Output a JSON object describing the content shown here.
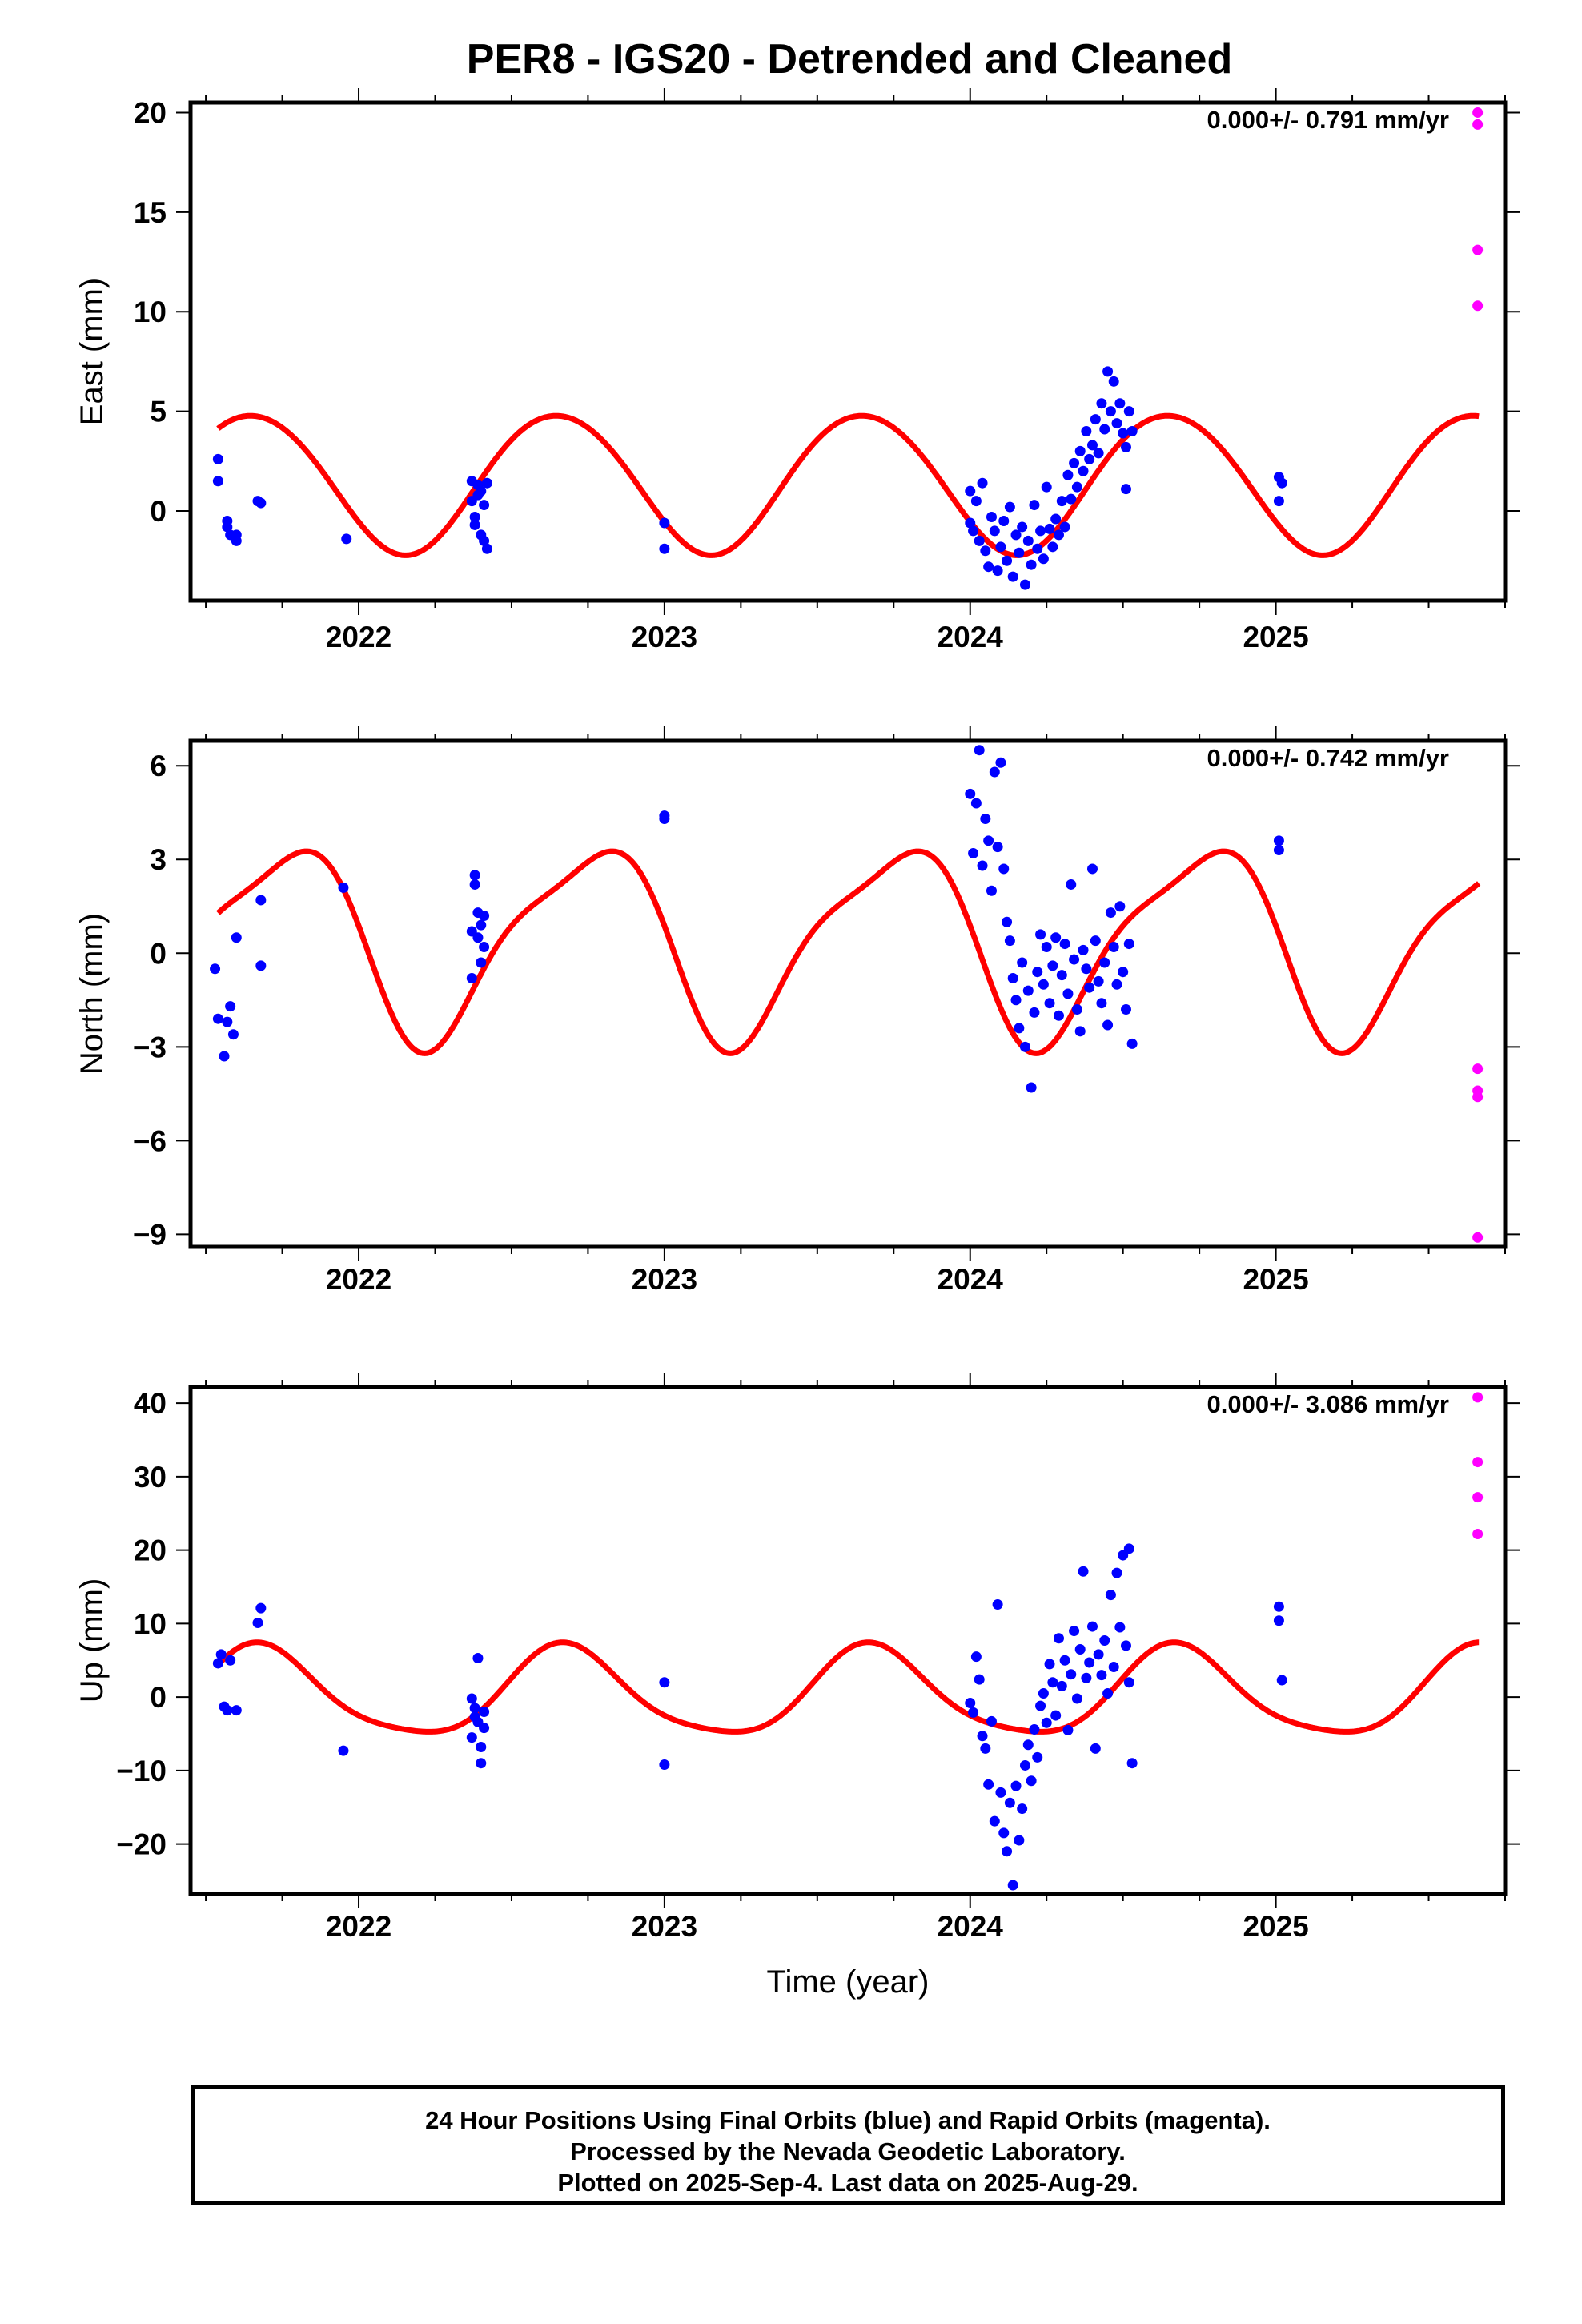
{
  "title": "PER8 - IGS20 - Detrended and Cleaned",
  "xlabel": "Time (year)",
  "colors": {
    "final": "#0000ff",
    "rapid": "#ff00ff",
    "model": "#ff0000",
    "axis": "#000000"
  },
  "footer": {
    "line1": "24 Hour Positions Using Final Orbits (blue) and Rapid Orbits (magenta).",
    "line2": "Processed by the Nevada Geodetic Laboratory.",
    "line3": "Plotted on 2025-Sep-4. Last data on 2025-Aug-29."
  },
  "chart_data": [
    {
      "type": "scatter",
      "ylabel": "East (mm)",
      "rate": "0.000+/- 0.791 mm/yr",
      "xlim": [
        2021.45,
        2025.75
      ],
      "ylim": [
        -4.5,
        20.5
      ],
      "x_ticks": [
        2022,
        2023,
        2024,
        2025
      ],
      "y_ticks": [
        0,
        5,
        10,
        15,
        20
      ],
      "y_tick_labels": [
        "0",
        "5",
        "10",
        "15",
        "20"
      ],
      "model": {
        "type": "line",
        "amp1": -0.16,
        "phase1": 0.17,
        "amp2": -3.5,
        "phase2": 0.0,
        "offset": 1.43
      },
      "final_orbits": [
        [
          2021.54,
          2.6
        ],
        [
          2021.54,
          1.5
        ],
        [
          2021.57,
          -0.5
        ],
        [
          2021.57,
          -0.8
        ],
        [
          2021.58,
          -1.2
        ],
        [
          2021.6,
          -1.5
        ],
        [
          2021.6,
          -1.2
        ],
        [
          2021.67,
          0.5
        ],
        [
          2021.68,
          0.4
        ],
        [
          2021.96,
          -1.4
        ],
        [
          2022.37,
          1.5
        ],
        [
          2022.37,
          0.5
        ],
        [
          2022.38,
          -0.3
        ],
        [
          2022.38,
          -0.7
        ],
        [
          2022.39,
          1.3
        ],
        [
          2022.39,
          0.8
        ],
        [
          2022.4,
          1.0
        ],
        [
          2022.4,
          -1.2
        ],
        [
          2022.41,
          -1.5
        ],
        [
          2022.41,
          0.3
        ],
        [
          2022.42,
          -1.9
        ],
        [
          2022.42,
          1.4
        ],
        [
          2023.0,
          -0.6
        ],
        [
          2023.0,
          -1.9
        ],
        [
          2024.0,
          -0.6
        ],
        [
          2024.0,
          1.0
        ],
        [
          2024.01,
          -1.0
        ],
        [
          2024.02,
          0.5
        ],
        [
          2024.03,
          -1.5
        ],
        [
          2024.04,
          1.4
        ],
        [
          2024.05,
          -2.0
        ],
        [
          2024.06,
          -2.8
        ],
        [
          2024.07,
          -0.3
        ],
        [
          2024.08,
          -1.0
        ],
        [
          2024.09,
          -3.0
        ],
        [
          2024.1,
          -1.8
        ],
        [
          2024.11,
          -0.5
        ],
        [
          2024.12,
          -2.5
        ],
        [
          2024.13,
          0.2
        ],
        [
          2024.14,
          -3.3
        ],
        [
          2024.15,
          -1.2
        ],
        [
          2024.16,
          -2.1
        ],
        [
          2024.17,
          -0.8
        ],
        [
          2024.18,
          -3.7
        ],
        [
          2024.19,
          -1.5
        ],
        [
          2024.2,
          -2.7
        ],
        [
          2024.21,
          0.3
        ],
        [
          2024.22,
          -1.9
        ],
        [
          2024.23,
          -1.0
        ],
        [
          2024.24,
          -2.4
        ],
        [
          2024.25,
          1.2
        ],
        [
          2024.26,
          -0.9
        ],
        [
          2024.27,
          -1.8
        ],
        [
          2024.28,
          -0.4
        ],
        [
          2024.29,
          -1.2
        ],
        [
          2024.3,
          0.5
        ],
        [
          2024.31,
          -0.8
        ],
        [
          2024.32,
          1.8
        ],
        [
          2024.33,
          0.6
        ],
        [
          2024.34,
          2.4
        ],
        [
          2024.35,
          1.2
        ],
        [
          2024.36,
          3.0
        ],
        [
          2024.37,
          2.0
        ],
        [
          2024.38,
          4.0
        ],
        [
          2024.39,
          2.6
        ],
        [
          2024.4,
          3.3
        ],
        [
          2024.41,
          4.6
        ],
        [
          2024.42,
          2.9
        ],
        [
          2024.43,
          5.4
        ],
        [
          2024.44,
          4.1
        ],
        [
          2024.45,
          7.0
        ],
        [
          2024.46,
          5.0
        ],
        [
          2024.47,
          6.5
        ],
        [
          2024.48,
          4.4
        ],
        [
          2024.49,
          5.4
        ],
        [
          2024.5,
          3.9
        ],
        [
          2024.51,
          3.2
        ],
        [
          2024.51,
          1.1
        ],
        [
          2024.52,
          5.0
        ],
        [
          2024.53,
          4.0
        ],
        [
          2025.01,
          1.7
        ],
        [
          2025.01,
          0.5
        ],
        [
          2025.02,
          1.4
        ]
      ],
      "rapid_orbits": [
        [
          2025.66,
          20.0
        ],
        [
          2025.66,
          19.4
        ],
        [
          2025.66,
          13.1
        ],
        [
          2025.66,
          10.3
        ]
      ]
    },
    {
      "type": "scatter",
      "ylabel": "North (mm)",
      "rate": "0.000+/- 0.742 mm/yr",
      "xlim": [
        2021.45,
        2025.75
      ],
      "ylim": [
        -9.4,
        6.8
      ],
      "x_ticks": [
        2022,
        2023,
        2024,
        2025
      ],
      "y_ticks": [
        -9,
        -6,
        -3,
        0,
        3,
        6
      ],
      "y_tick_labels": [
        "−9",
        "−6",
        "−3",
        "0",
        "3",
        "6"
      ],
      "model": {
        "type": "line",
        "amp1": -0.75,
        "phase1": 0.18,
        "amp2": -3.0,
        "phase2": 0.1,
        "offset": 0.4
      },
      "final_orbits": [
        [
          2021.53,
          -0.5
        ],
        [
          2021.54,
          -2.1
        ],
        [
          2021.56,
          -3.3
        ],
        [
          2021.57,
          -2.2
        ],
        [
          2021.58,
          -1.7
        ],
        [
          2021.59,
          -2.6
        ],
        [
          2021.6,
          0.5
        ],
        [
          2021.68,
          1.7
        ],
        [
          2021.68,
          -0.4
        ],
        [
          2021.95,
          2.1
        ],
        [
          2022.37,
          -0.8
        ],
        [
          2022.37,
          0.7
        ],
        [
          2022.38,
          2.5
        ],
        [
          2022.38,
          2.2
        ],
        [
          2022.39,
          1.3
        ],
        [
          2022.39,
          0.5
        ],
        [
          2022.4,
          0.9
        ],
        [
          2022.4,
          -0.3
        ],
        [
          2022.41,
          0.2
        ],
        [
          2022.41,
          1.2
        ],
        [
          2023.0,
          4.3
        ],
        [
          2023.0,
          4.4
        ],
        [
          2024.0,
          5.1
        ],
        [
          2024.01,
          3.2
        ],
        [
          2024.02,
          4.8
        ],
        [
          2024.03,
          6.5
        ],
        [
          2024.04,
          2.8
        ],
        [
          2024.05,
          4.3
        ],
        [
          2024.06,
          3.6
        ],
        [
          2024.07,
          2.0
        ],
        [
          2024.08,
          5.8
        ],
        [
          2024.09,
          3.4
        ],
        [
          2024.1,
          6.1
        ],
        [
          2024.11,
          2.7
        ],
        [
          2024.12,
          1.0
        ],
        [
          2024.13,
          0.4
        ],
        [
          2024.14,
          -0.8
        ],
        [
          2024.15,
          -1.5
        ],
        [
          2024.16,
          -2.4
        ],
        [
          2024.17,
          -0.3
        ],
        [
          2024.18,
          -3.0
        ],
        [
          2024.19,
          -1.2
        ],
        [
          2024.2,
          -4.3
        ],
        [
          2024.21,
          -1.9
        ],
        [
          2024.22,
          -0.6
        ],
        [
          2024.23,
          0.6
        ],
        [
          2024.24,
          -1.0
        ],
        [
          2024.25,
          0.2
        ],
        [
          2024.26,
          -1.6
        ],
        [
          2024.27,
          -0.4
        ],
        [
          2024.28,
          0.5
        ],
        [
          2024.29,
          -2.0
        ],
        [
          2024.3,
          -0.7
        ],
        [
          2024.31,
          0.3
        ],
        [
          2024.32,
          -1.3
        ],
        [
          2024.33,
          2.2
        ],
        [
          2024.34,
          -0.2
        ],
        [
          2024.35,
          -1.8
        ],
        [
          2024.36,
          -2.5
        ],
        [
          2024.37,
          0.1
        ],
        [
          2024.38,
          -0.5
        ],
        [
          2024.39,
          -1.1
        ],
        [
          2024.4,
          2.7
        ],
        [
          2024.41,
          0.4
        ],
        [
          2024.42,
          -0.9
        ],
        [
          2024.43,
          -1.6
        ],
        [
          2024.44,
          -0.3
        ],
        [
          2024.45,
          -2.3
        ],
        [
          2024.46,
          1.3
        ],
        [
          2024.47,
          0.2
        ],
        [
          2024.48,
          -1.0
        ],
        [
          2024.49,
          1.5
        ],
        [
          2024.5,
          -0.6
        ],
        [
          2024.51,
          -1.8
        ],
        [
          2024.52,
          0.3
        ],
        [
          2024.53,
          -2.9
        ],
        [
          2025.01,
          3.6
        ],
        [
          2025.01,
          3.3
        ]
      ],
      "rapid_orbits": [
        [
          2025.66,
          -3.7
        ],
        [
          2025.66,
          -4.4
        ],
        [
          2025.66,
          -4.6
        ],
        [
          2025.66,
          -9.1
        ]
      ]
    },
    {
      "type": "scatter",
      "ylabel": "Up (mm)",
      "rate": "0.000+/- 3.086 mm/yr",
      "xlim": [
        2021.45,
        2025.75
      ],
      "ylim": [
        -26.8,
        42.2
      ],
      "x_ticks": [
        2022,
        2023,
        2024,
        2025
      ],
      "y_ticks": [
        -20,
        -10,
        0,
        10,
        20,
        30,
        40
      ],
      "y_tick_labels": [
        "−20",
        "−10",
        "0",
        "10",
        "20",
        "30",
        "40"
      ],
      "model": {
        "type": "line",
        "amp1": -1.1,
        "phase1": 0.9,
        "amp2": -6.0,
        "phase2": 0.03,
        "offset": 0.4
      },
      "final_orbits": [
        [
          2021.54,
          4.6
        ],
        [
          2021.55,
          5.8
        ],
        [
          2021.56,
          -1.3
        ],
        [
          2021.57,
          -1.8
        ],
        [
          2021.58,
          5.0
        ],
        [
          2021.6,
          -1.8
        ],
        [
          2021.67,
          10.1
        ],
        [
          2021.68,
          12.1
        ],
        [
          2021.95,
          -7.3
        ],
        [
          2022.37,
          -5.5
        ],
        [
          2022.37,
          -0.2
        ],
        [
          2022.38,
          -1.5
        ],
        [
          2022.38,
          -2.7
        ],
        [
          2022.39,
          5.3
        ],
        [
          2022.39,
          -3.4
        ],
        [
          2022.4,
          -6.8
        ],
        [
          2022.4,
          -9.0
        ],
        [
          2022.41,
          -2.0
        ],
        [
          2022.41,
          -4.2
        ],
        [
          2023.0,
          2.0
        ],
        [
          2023.0,
          -9.2
        ],
        [
          2024.0,
          -0.8
        ],
        [
          2024.01,
          -2.1
        ],
        [
          2024.02,
          5.5
        ],
        [
          2024.03,
          2.4
        ],
        [
          2024.04,
          -5.3
        ],
        [
          2024.05,
          -7.0
        ],
        [
          2024.06,
          -11.9
        ],
        [
          2024.07,
          -3.3
        ],
        [
          2024.08,
          -16.9
        ],
        [
          2024.09,
          12.6
        ],
        [
          2024.1,
          -13.0
        ],
        [
          2024.11,
          -18.5
        ],
        [
          2024.12,
          -21.0
        ],
        [
          2024.13,
          -14.4
        ],
        [
          2024.14,
          -25.6
        ],
        [
          2024.15,
          -12.1
        ],
        [
          2024.16,
          -19.5
        ],
        [
          2024.17,
          -15.2
        ],
        [
          2024.18,
          -9.3
        ],
        [
          2024.19,
          -6.5
        ],
        [
          2024.2,
          -11.4
        ],
        [
          2024.21,
          -4.4
        ],
        [
          2024.22,
          -8.2
        ],
        [
          2024.23,
          -1.2
        ],
        [
          2024.24,
          0.5
        ],
        [
          2024.25,
          -3.5
        ],
        [
          2024.26,
          4.5
        ],
        [
          2024.27,
          2.0
        ],
        [
          2024.28,
          -2.5
        ],
        [
          2024.29,
          8.0
        ],
        [
          2024.3,
          1.5
        ],
        [
          2024.31,
          5.0
        ],
        [
          2024.32,
          -4.5
        ],
        [
          2024.33,
          3.1
        ],
        [
          2024.34,
          9.0
        ],
        [
          2024.35,
          -0.2
        ],
        [
          2024.36,
          6.5
        ],
        [
          2024.37,
          17.1
        ],
        [
          2024.38,
          2.6
        ],
        [
          2024.39,
          4.7
        ],
        [
          2024.4,
          9.6
        ],
        [
          2024.41,
          -7.0
        ],
        [
          2024.42,
          5.8
        ],
        [
          2024.43,
          3.0
        ],
        [
          2024.44,
          7.7
        ],
        [
          2024.45,
          0.5
        ],
        [
          2024.46,
          13.9
        ],
        [
          2024.47,
          4.1
        ],
        [
          2024.48,
          16.9
        ],
        [
          2024.49,
          9.5
        ],
        [
          2024.5,
          19.3
        ],
        [
          2024.51,
          7.0
        ],
        [
          2024.52,
          20.2
        ],
        [
          2024.52,
          2.0
        ],
        [
          2024.53,
          -9.0
        ],
        [
          2025.01,
          12.3
        ],
        [
          2025.01,
          10.4
        ],
        [
          2025.02,
          2.3
        ]
      ],
      "rapid_orbits": [
        [
          2025.66,
          40.8
        ],
        [
          2025.66,
          32.0
        ],
        [
          2025.66,
          27.2
        ],
        [
          2025.66,
          22.2
        ]
      ]
    }
  ]
}
